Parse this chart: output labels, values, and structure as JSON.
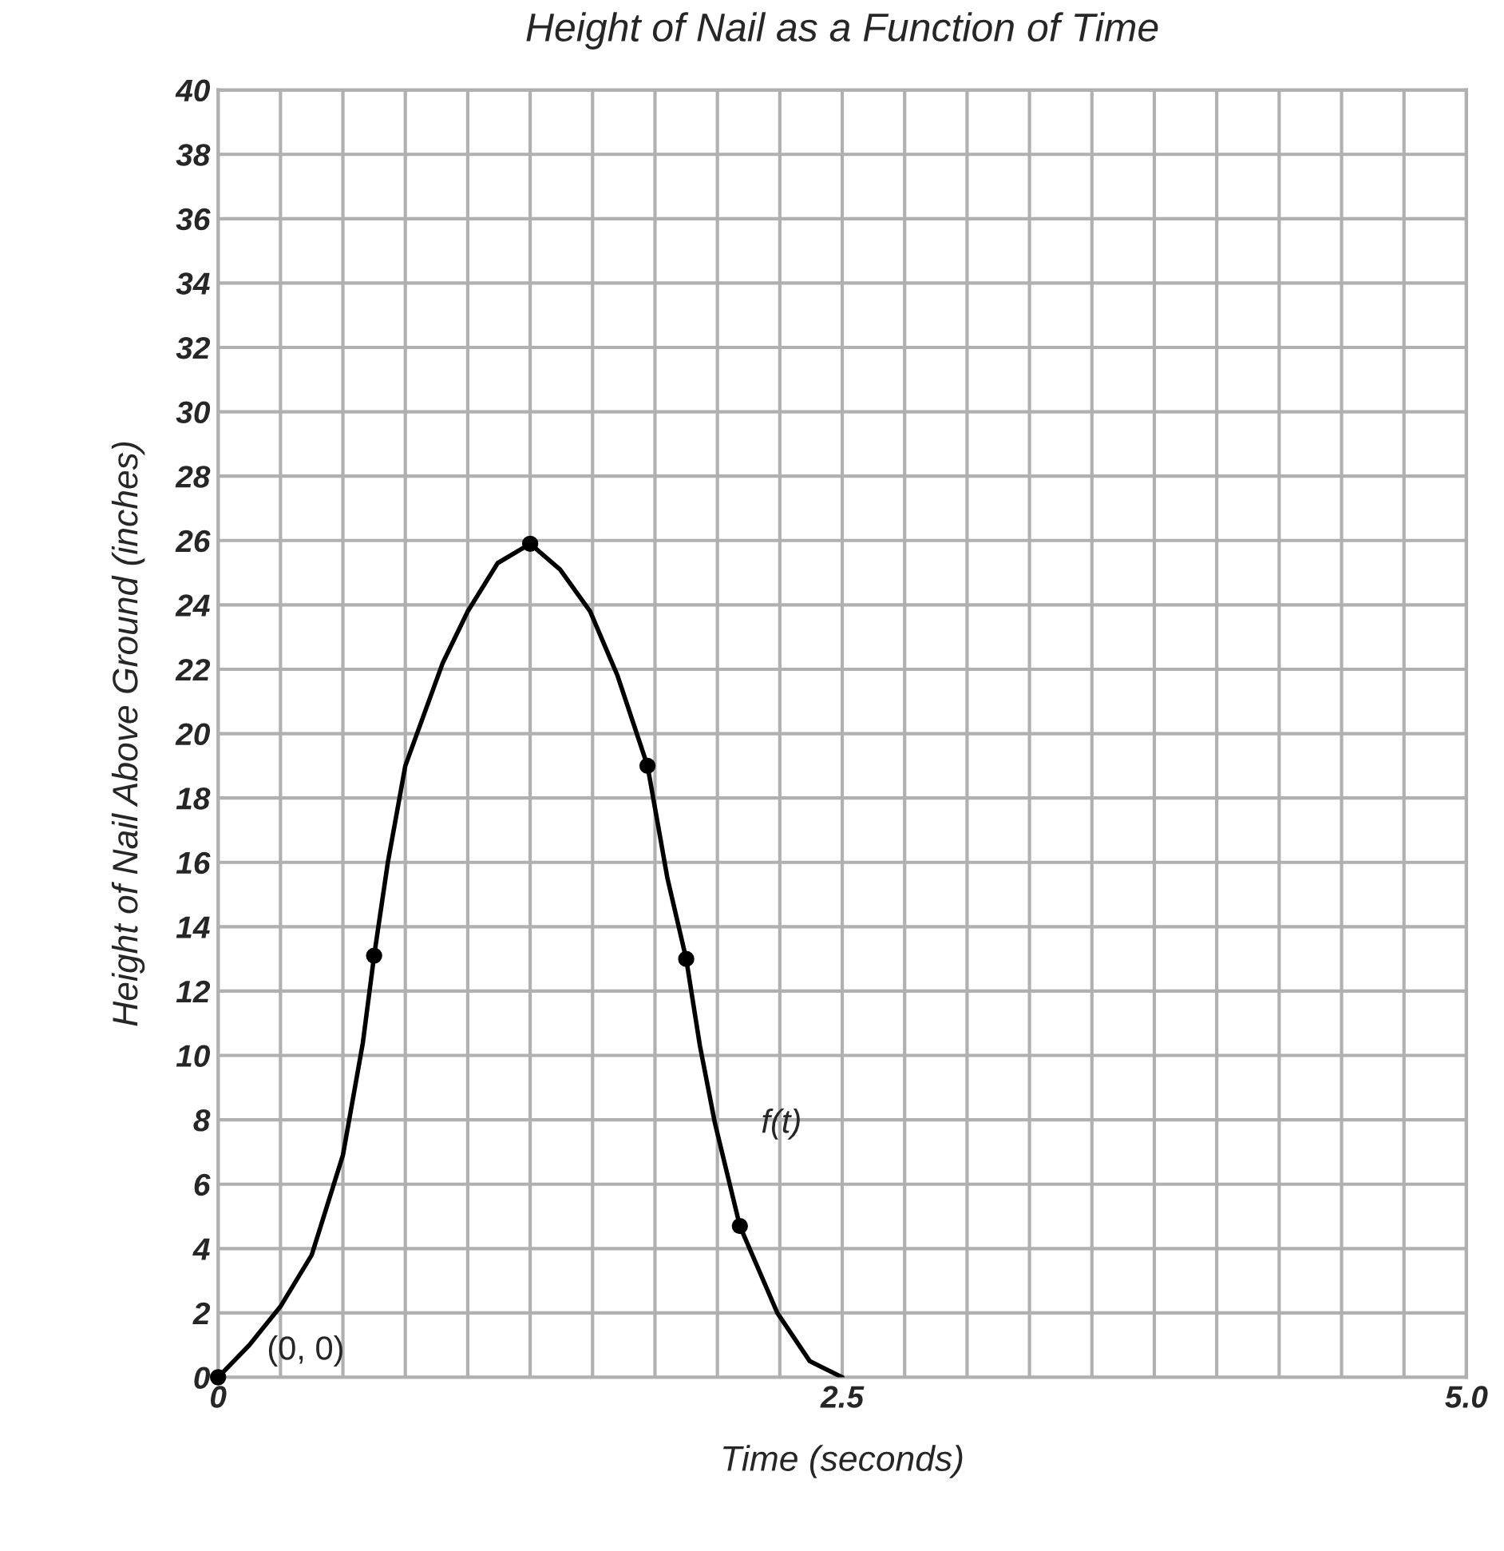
{
  "chart_data": {
    "type": "line",
    "title": "Height of Nail as a Function of Time",
    "xlabel": "Time (seconds)",
    "ylabel": "Height of Nail Above Ground (inches)",
    "xlim": [
      0,
      5
    ],
    "ylim": [
      0,
      40
    ],
    "xticks": [
      0,
      {
        "value": 0.25,
        "label": null
      },
      {
        "value": 0.5,
        "label": null
      },
      {
        "value": 0.75,
        "label": null
      },
      {
        "value": 1,
        "label": null
      },
      {
        "value": 1.25,
        "label": null
      },
      {
        "value": 1.5,
        "label": null
      },
      {
        "value": 1.75,
        "label": null
      },
      {
        "value": 2,
        "label": null
      },
      {
        "value": 2.25,
        "label": null
      },
      2.5,
      {
        "value": 2.75,
        "label": null
      },
      {
        "value": 3,
        "label": null
      },
      {
        "value": 3.25,
        "label": null
      },
      {
        "value": 3.5,
        "label": null
      },
      {
        "value": 3.75,
        "label": null
      },
      {
        "value": 4,
        "label": null
      },
      {
        "value": 4.25,
        "label": null
      },
      {
        "value": 4.5,
        "label": null
      },
      {
        "value": 4.75,
        "label": null
      },
      {
        "value": 5,
        "label": "5.0"
      }
    ],
    "yticks": [
      0,
      2,
      4,
      6,
      8,
      10,
      12,
      14,
      16,
      18,
      20,
      22,
      24,
      26,
      28,
      30,
      32,
      34,
      36,
      38,
      40
    ],
    "grid": true,
    "line_style": "solid",
    "series": [
      {
        "color": "#000000",
        "x": [
          0,
          0.125,
          0.25,
          0.375,
          0.5,
          0.58,
          0.625,
          0.68,
          0.75,
          0.9,
          1.0,
          1.12,
          1.25,
          1.37,
          1.49,
          1.6,
          1.72,
          1.8,
          1.875,
          1.93,
          1.99,
          2.09,
          2.24,
          2.37,
          2.5
        ],
        "values": [
          0,
          1,
          2.2,
          3.8,
          6.9,
          10.4,
          13.1,
          16,
          19,
          22.2,
          23.8,
          25.3,
          25.9,
          25.1,
          23.8,
          21.8,
          19,
          15.5,
          13,
          10.3,
          7.9,
          4.7,
          2,
          0.5,
          0
        ]
      },
      {
        "type": "scatter",
        "marker": "circle",
        "color": "#000000",
        "x": [
          0,
          0.625,
          1.25,
          1.72,
          1.875,
          2.09
        ],
        "values": [
          0,
          13.1,
          25.9,
          19,
          13,
          4.7
        ]
      }
    ],
    "annotations": [
      {
        "text": "(0, 0)",
        "x": 0,
        "y": 0
      },
      "f(t)"
    ]
  }
}
